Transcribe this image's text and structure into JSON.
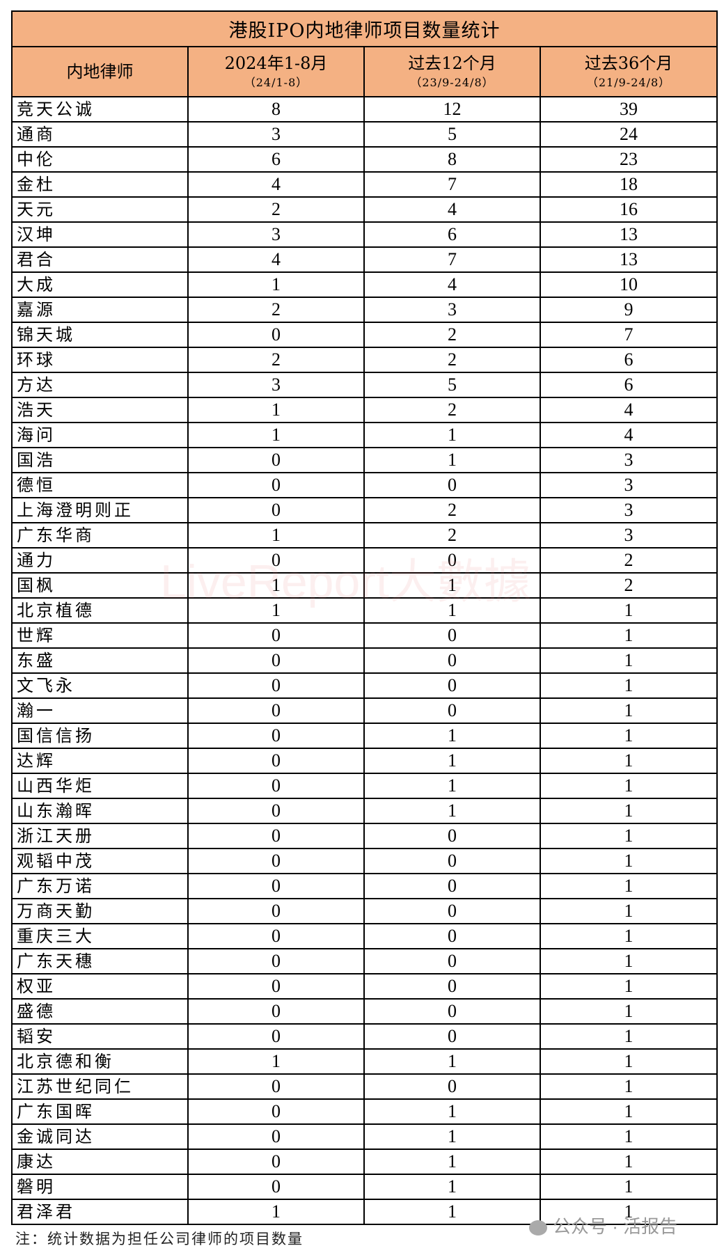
{
  "title": "港股IPO内地律师项目数量统计",
  "columns": [
    {
      "label": "内地律师",
      "sub": ""
    },
    {
      "label": "2024年1-8月",
      "sub": "（24/1-8）"
    },
    {
      "label": "过去12个月",
      "sub": "（23/9-24/8）"
    },
    {
      "label": "过去36个月",
      "sub": "（21/9-24/8）"
    }
  ],
  "rows": [
    [
      "竞天公诚",
      "8",
      "12",
      "39"
    ],
    [
      "通商",
      "3",
      "5",
      "24"
    ],
    [
      "中伦",
      "6",
      "8",
      "23"
    ],
    [
      "金杜",
      "4",
      "7",
      "18"
    ],
    [
      "天元",
      "2",
      "4",
      "16"
    ],
    [
      "汉坤",
      "3",
      "6",
      "13"
    ],
    [
      "君合",
      "4",
      "7",
      "13"
    ],
    [
      "大成",
      "1",
      "4",
      "10"
    ],
    [
      "嘉源",
      "2",
      "3",
      "9"
    ],
    [
      "锦天城",
      "0",
      "2",
      "7"
    ],
    [
      "环球",
      "2",
      "2",
      "6"
    ],
    [
      "方达",
      "3",
      "5",
      "6"
    ],
    [
      "浩天",
      "1",
      "2",
      "4"
    ],
    [
      "海问",
      "1",
      "1",
      "4"
    ],
    [
      "国浩",
      "0",
      "1",
      "3"
    ],
    [
      "德恒",
      "0",
      "0",
      "3"
    ],
    [
      "上海澄明则正",
      "0",
      "2",
      "3"
    ],
    [
      "广东华商",
      "1",
      "2",
      "3"
    ],
    [
      "通力",
      "0",
      "0",
      "2"
    ],
    [
      "国枫",
      "1",
      "1",
      "2"
    ],
    [
      "北京植德",
      "1",
      "1",
      "1"
    ],
    [
      "世辉",
      "0",
      "0",
      "1"
    ],
    [
      "东盛",
      "0",
      "0",
      "1"
    ],
    [
      "文飞永",
      "0",
      "0",
      "1"
    ],
    [
      "瀚一",
      "0",
      "0",
      "1"
    ],
    [
      "国信信扬",
      "0",
      "1",
      "1"
    ],
    [
      "达辉",
      "0",
      "1",
      "1"
    ],
    [
      "山西华炬",
      "0",
      "1",
      "1"
    ],
    [
      "山东瀚晖",
      "0",
      "1",
      "1"
    ],
    [
      "浙江天册",
      "0",
      "0",
      "1"
    ],
    [
      "观韬中茂",
      "0",
      "0",
      "1"
    ],
    [
      "广东万诺",
      "0",
      "0",
      "1"
    ],
    [
      "万商天勤",
      "0",
      "0",
      "1"
    ],
    [
      "重庆三大",
      "0",
      "0",
      "1"
    ],
    [
      "广东天穗",
      "0",
      "0",
      "1"
    ],
    [
      "权亚",
      "0",
      "0",
      "1"
    ],
    [
      "盛德",
      "0",
      "0",
      "1"
    ],
    [
      "韬安",
      "0",
      "0",
      "1"
    ],
    [
      "北京德和衡",
      "1",
      "1",
      "1"
    ],
    [
      "江苏世纪同仁",
      "0",
      "0",
      "1"
    ],
    [
      "广东国晖",
      "0",
      "1",
      "1"
    ],
    [
      "金诚同达",
      "0",
      "1",
      "1"
    ],
    [
      "康达",
      "0",
      "1",
      "1"
    ],
    [
      "磐明",
      "0",
      "1",
      "1"
    ],
    [
      "君泽君",
      "1",
      "1",
      "1"
    ]
  ],
  "note": "注：统计数据为担任公司律师的项目数量",
  "watermark": "LiveReport大數據",
  "source_badge": "公众号 · 活报告",
  "colors": {
    "header_bg": "#f4b183"
  }
}
